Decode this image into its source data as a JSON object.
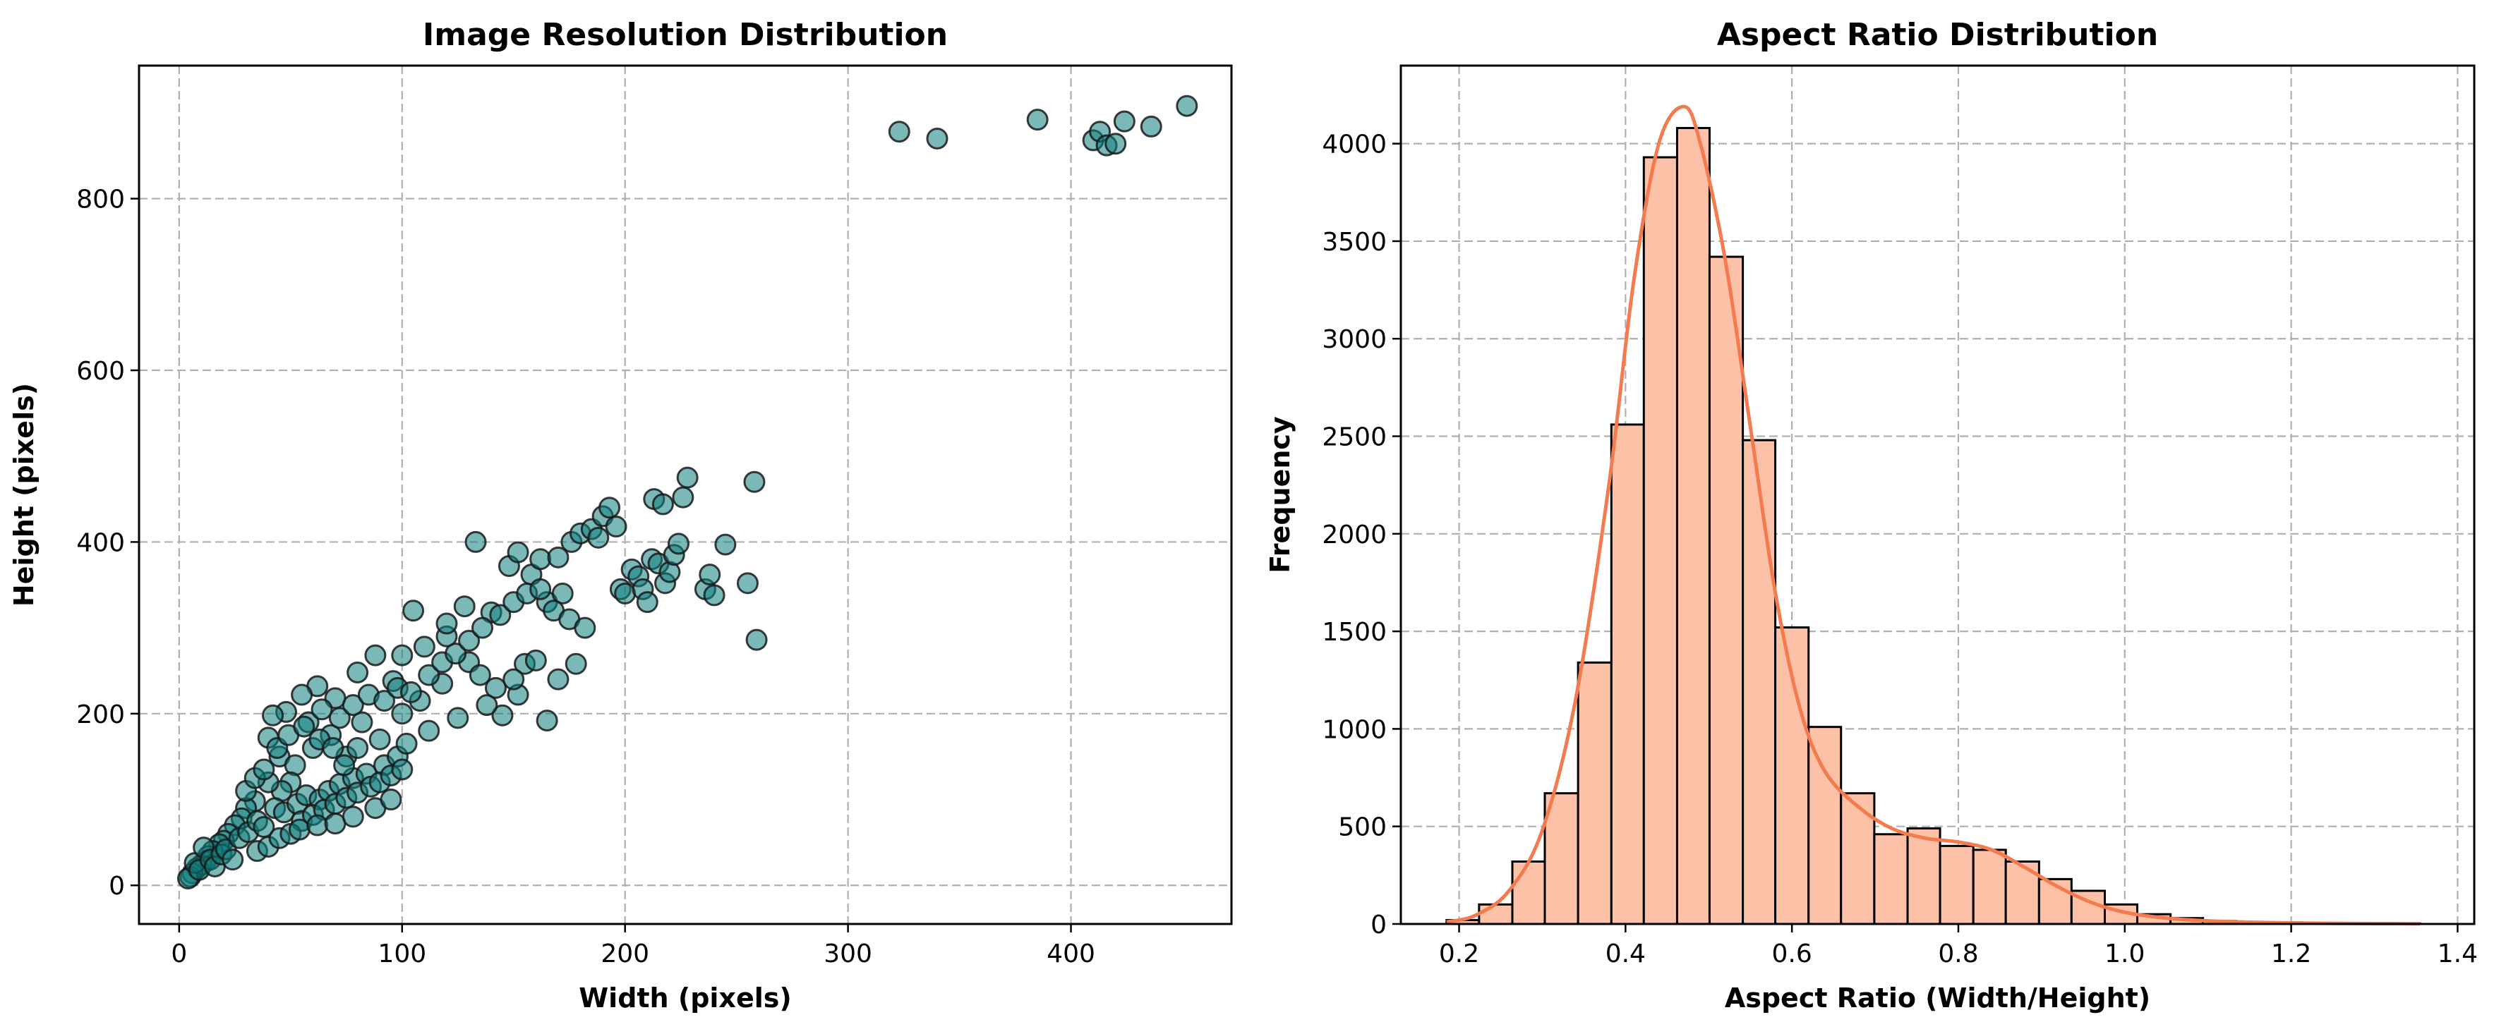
{
  "chart_data": [
    {
      "type": "scatter",
      "title": "Image Resolution Distribution",
      "xlabel": "Width (pixels)",
      "ylabel": "Height (pixels)",
      "xlim": [
        -18,
        472
      ],
      "ylim": [
        -45,
        955
      ],
      "xticks": [
        0,
        100,
        200,
        300,
        400
      ],
      "yticks": [
        0,
        200,
        400,
        600,
        800
      ],
      "grid": true,
      "marker_color": "#0e8080",
      "marker_edge": "#1a1a1a",
      "series": [
        {
          "points": [
            [
              323,
              878
            ],
            [
              340,
              870
            ],
            [
              385,
              892
            ],
            [
              410,
              868
            ],
            [
              413,
              878
            ],
            [
              416,
              862
            ],
            [
              420,
              864
            ],
            [
              424,
              890
            ],
            [
              436,
              884
            ],
            [
              452,
              908
            ],
            [
              133,
              400
            ],
            [
              148,
              372
            ],
            [
              152,
              388
            ],
            [
              158,
              362
            ],
            [
              162,
              380
            ],
            [
              165,
              330
            ],
            [
              170,
              382
            ],
            [
              172,
              340
            ],
            [
              176,
              400
            ],
            [
              180,
              410
            ],
            [
              185,
              415
            ],
            [
              188,
              405
            ],
            [
              190,
              430
            ],
            [
              193,
              440
            ],
            [
              196,
              418
            ],
            [
              198,
              345
            ],
            [
              200,
              340
            ],
            [
              203,
              368
            ],
            [
              206,
              360
            ],
            [
              208,
              345
            ],
            [
              210,
              330
            ],
            [
              212,
              380
            ],
            [
              213,
              450
            ],
            [
              215,
              375
            ],
            [
              217,
              444
            ],
            [
              218,
              352
            ],
            [
              220,
              365
            ],
            [
              222,
              385
            ],
            [
              224,
              398
            ],
            [
              226,
              452
            ],
            [
              228,
              475
            ],
            [
              236,
              345
            ],
            [
              238,
              362
            ],
            [
              240,
              338
            ],
            [
              245,
              397
            ],
            [
              255,
              352
            ],
            [
              258,
              470
            ],
            [
              259,
              286
            ],
            [
              165,
              192
            ],
            [
              152,
              222
            ],
            [
              145,
              198
            ],
            [
              155,
              258
            ],
            [
              160,
              262
            ],
            [
              170,
              240
            ],
            [
              178,
              258
            ],
            [
              140,
              318
            ],
            [
              128,
              325
            ],
            [
              120,
              290
            ],
            [
              110,
              278
            ],
            [
              100,
              268
            ],
            [
              96,
              238
            ],
            [
              88,
              268
            ],
            [
              80,
              248
            ],
            [
              70,
              218
            ],
            [
              62,
              232
            ],
            [
              55,
              222
            ],
            [
              48,
              202
            ],
            [
              40,
              172
            ],
            [
              42,
              198
            ],
            [
              45,
              150
            ],
            [
              105,
              320
            ],
            [
              120,
              305
            ],
            [
              130,
              260
            ],
            [
              135,
              245
            ],
            [
              118,
              235
            ],
            [
              108,
              215
            ],
            [
              100,
              200
            ],
            [
              90,
              170
            ],
            [
              82,
              190
            ],
            [
              75,
              150
            ],
            [
              68,
              175
            ],
            [
              60,
              160
            ],
            [
              52,
              140
            ],
            [
              50,
              120
            ],
            [
              46,
              110
            ],
            [
              40,
              120
            ],
            [
              34,
              98
            ],
            [
              30,
              90
            ],
            [
              28,
              78
            ],
            [
              25,
              70
            ],
            [
              22,
              60
            ],
            [
              20,
              52
            ],
            [
              18,
              48
            ],
            [
              15,
              40
            ],
            [
              13,
              34
            ],
            [
              12,
              28
            ],
            [
              10,
              24
            ],
            [
              8,
              20
            ],
            [
              6,
              14
            ],
            [
              5,
              10
            ],
            [
              4,
              8
            ],
            [
              7,
              26
            ],
            [
              9,
              18
            ],
            [
              11,
              44
            ],
            [
              14,
              30
            ],
            [
              16,
              22
            ],
            [
              19,
              36
            ],
            [
              21,
              42
            ],
            [
              24,
              30
            ],
            [
              27,
              55
            ],
            [
              31,
              62
            ],
            [
              35,
              75
            ],
            [
              38,
              68
            ],
            [
              43,
              90
            ],
            [
              47,
              85
            ],
            [
              53,
              95
            ],
            [
              57,
              105
            ],
            [
              63,
              100
            ],
            [
              67,
              110
            ],
            [
              72,
              118
            ],
            [
              78,
              125
            ],
            [
              84,
              130
            ],
            [
              92,
              140
            ],
            [
              98,
              150
            ],
            [
              102,
              165
            ],
            [
              112,
              180
            ],
            [
              125,
              195
            ],
            [
              138,
              210
            ],
            [
              142,
              230
            ],
            [
              150,
              240
            ],
            [
              55,
              75
            ],
            [
              60,
              82
            ],
            [
              65,
              88
            ],
            [
              70,
              95
            ],
            [
              75,
              102
            ],
            [
              80,
              108
            ],
            [
              86,
              115
            ],
            [
              90,
              120
            ],
            [
              95,
              128
            ],
            [
              100,
              135
            ],
            [
              58,
              190
            ],
            [
              64,
              205
            ],
            [
              72,
              195
            ],
            [
              78,
              210
            ],
            [
              85,
              222
            ],
            [
              92,
              215
            ],
            [
              98,
              230
            ],
            [
              104,
              225
            ],
            [
              112,
              245
            ],
            [
              118,
              260
            ],
            [
              124,
              270
            ],
            [
              130,
              285
            ],
            [
              136,
              300
            ],
            [
              144,
              315
            ],
            [
              150,
              330
            ],
            [
              156,
              340
            ],
            [
              162,
              345
            ],
            [
              168,
              320
            ],
            [
              175,
              310
            ],
            [
              182,
              300
            ],
            [
              35,
              40
            ],
            [
              40,
              45
            ],
            [
              45,
              55
            ],
            [
              50,
              60
            ],
            [
              54,
              65
            ],
            [
              62,
              70
            ],
            [
              70,
              72
            ],
            [
              78,
              80
            ],
            [
              88,
              90
            ],
            [
              95,
              100
            ],
            [
              30,
              110
            ],
            [
              34,
              125
            ],
            [
              38,
              135
            ],
            [
              44,
              160
            ],
            [
              49,
              175
            ],
            [
              56,
              185
            ],
            [
              63,
              170
            ],
            [
              69,
              160
            ],
            [
              74,
              140
            ],
            [
              80,
              160
            ]
          ]
        }
      ]
    },
    {
      "type": "bar",
      "title": "Aspect Ratio Distribution",
      "xlabel": "Aspect Ratio (Width/Height)",
      "ylabel": "Frequency",
      "xlim": [
        0.13,
        1.42
      ],
      "ylim": [
        0,
        4400
      ],
      "xticks": [
        0.2,
        0.4,
        0.6,
        0.8,
        1.0,
        1.2,
        1.4
      ],
      "xtick_labels": [
        "0.2",
        "0.4",
        "0.6",
        "0.8",
        "1.0",
        "1.2",
        "1.4"
      ],
      "yticks": [
        0,
        500,
        1000,
        1500,
        2000,
        2500,
        3000,
        3500,
        4000
      ],
      "grid": true,
      "bar_color": "#fdc1a7",
      "kde_color": "#f47b4e",
      "bins": [
        {
          "x0": 0.185,
          "x1": 0.224,
          "value": 20
        },
        {
          "x0": 0.224,
          "x1": 0.264,
          "value": 100
        },
        {
          "x0": 0.264,
          "x1": 0.303,
          "value": 320
        },
        {
          "x0": 0.303,
          "x1": 0.343,
          "value": 670
        },
        {
          "x0": 0.343,
          "x1": 0.383,
          "value": 1340
        },
        {
          "x0": 0.383,
          "x1": 0.422,
          "value": 2560
        },
        {
          "x0": 0.422,
          "x1": 0.462,
          "value": 3930
        },
        {
          "x0": 0.462,
          "x1": 0.501,
          "value": 4080
        },
        {
          "x0": 0.501,
          "x1": 0.541,
          "value": 3420
        },
        {
          "x0": 0.541,
          "x1": 0.58,
          "value": 2480
        },
        {
          "x0": 0.58,
          "x1": 0.62,
          "value": 1520
        },
        {
          "x0": 0.62,
          "x1": 0.659,
          "value": 1010
        },
        {
          "x0": 0.659,
          "x1": 0.699,
          "value": 670
        },
        {
          "x0": 0.699,
          "x1": 0.739,
          "value": 460
        },
        {
          "x0": 0.739,
          "x1": 0.778,
          "value": 490
        },
        {
          "x0": 0.778,
          "x1": 0.818,
          "value": 400
        },
        {
          "x0": 0.818,
          "x1": 0.857,
          "value": 380
        },
        {
          "x0": 0.857,
          "x1": 0.897,
          "value": 320
        },
        {
          "x0": 0.897,
          "x1": 0.936,
          "value": 230
        },
        {
          "x0": 0.936,
          "x1": 0.976,
          "value": 170
        },
        {
          "x0": 0.976,
          "x1": 1.015,
          "value": 100
        },
        {
          "x0": 1.015,
          "x1": 1.055,
          "value": 50
        },
        {
          "x0": 1.055,
          "x1": 1.094,
          "value": 30
        },
        {
          "x0": 1.094,
          "x1": 1.134,
          "value": 15
        },
        {
          "x0": 1.134,
          "x1": 1.173,
          "value": 10
        },
        {
          "x0": 1.173,
          "x1": 1.213,
          "value": 8
        },
        {
          "x0": 1.213,
          "x1": 1.252,
          "value": 5
        },
        {
          "x0": 1.252,
          "x1": 1.292,
          "value": 3
        },
        {
          "x0": 1.292,
          "x1": 1.331,
          "value": 2
        },
        {
          "x0": 1.331,
          "x1": 1.355,
          "value": 2
        }
      ],
      "kde": [
        [
          0.185,
          10
        ],
        [
          0.22,
          45
        ],
        [
          0.26,
          170
        ],
        [
          0.3,
          480
        ],
        [
          0.34,
          1150
        ],
        [
          0.38,
          2250
        ],
        [
          0.41,
          3300
        ],
        [
          0.44,
          4000
        ],
        [
          0.47,
          4190
        ],
        [
          0.49,
          4000
        ],
        [
          0.52,
          3400
        ],
        [
          0.55,
          2550
        ],
        [
          0.58,
          1700
        ],
        [
          0.61,
          1100
        ],
        [
          0.64,
          780
        ],
        [
          0.68,
          600
        ],
        [
          0.72,
          490
        ],
        [
          0.76,
          440
        ],
        [
          0.8,
          420
        ],
        [
          0.84,
          380
        ],
        [
          0.88,
          290
        ],
        [
          0.92,
          190
        ],
        [
          0.96,
          110
        ],
        [
          1.0,
          60
        ],
        [
          1.05,
          30
        ],
        [
          1.1,
          16
        ],
        [
          1.15,
          9
        ],
        [
          1.2,
          5
        ],
        [
          1.25,
          3
        ],
        [
          1.3,
          2
        ],
        [
          1.355,
          1
        ]
      ]
    }
  ]
}
